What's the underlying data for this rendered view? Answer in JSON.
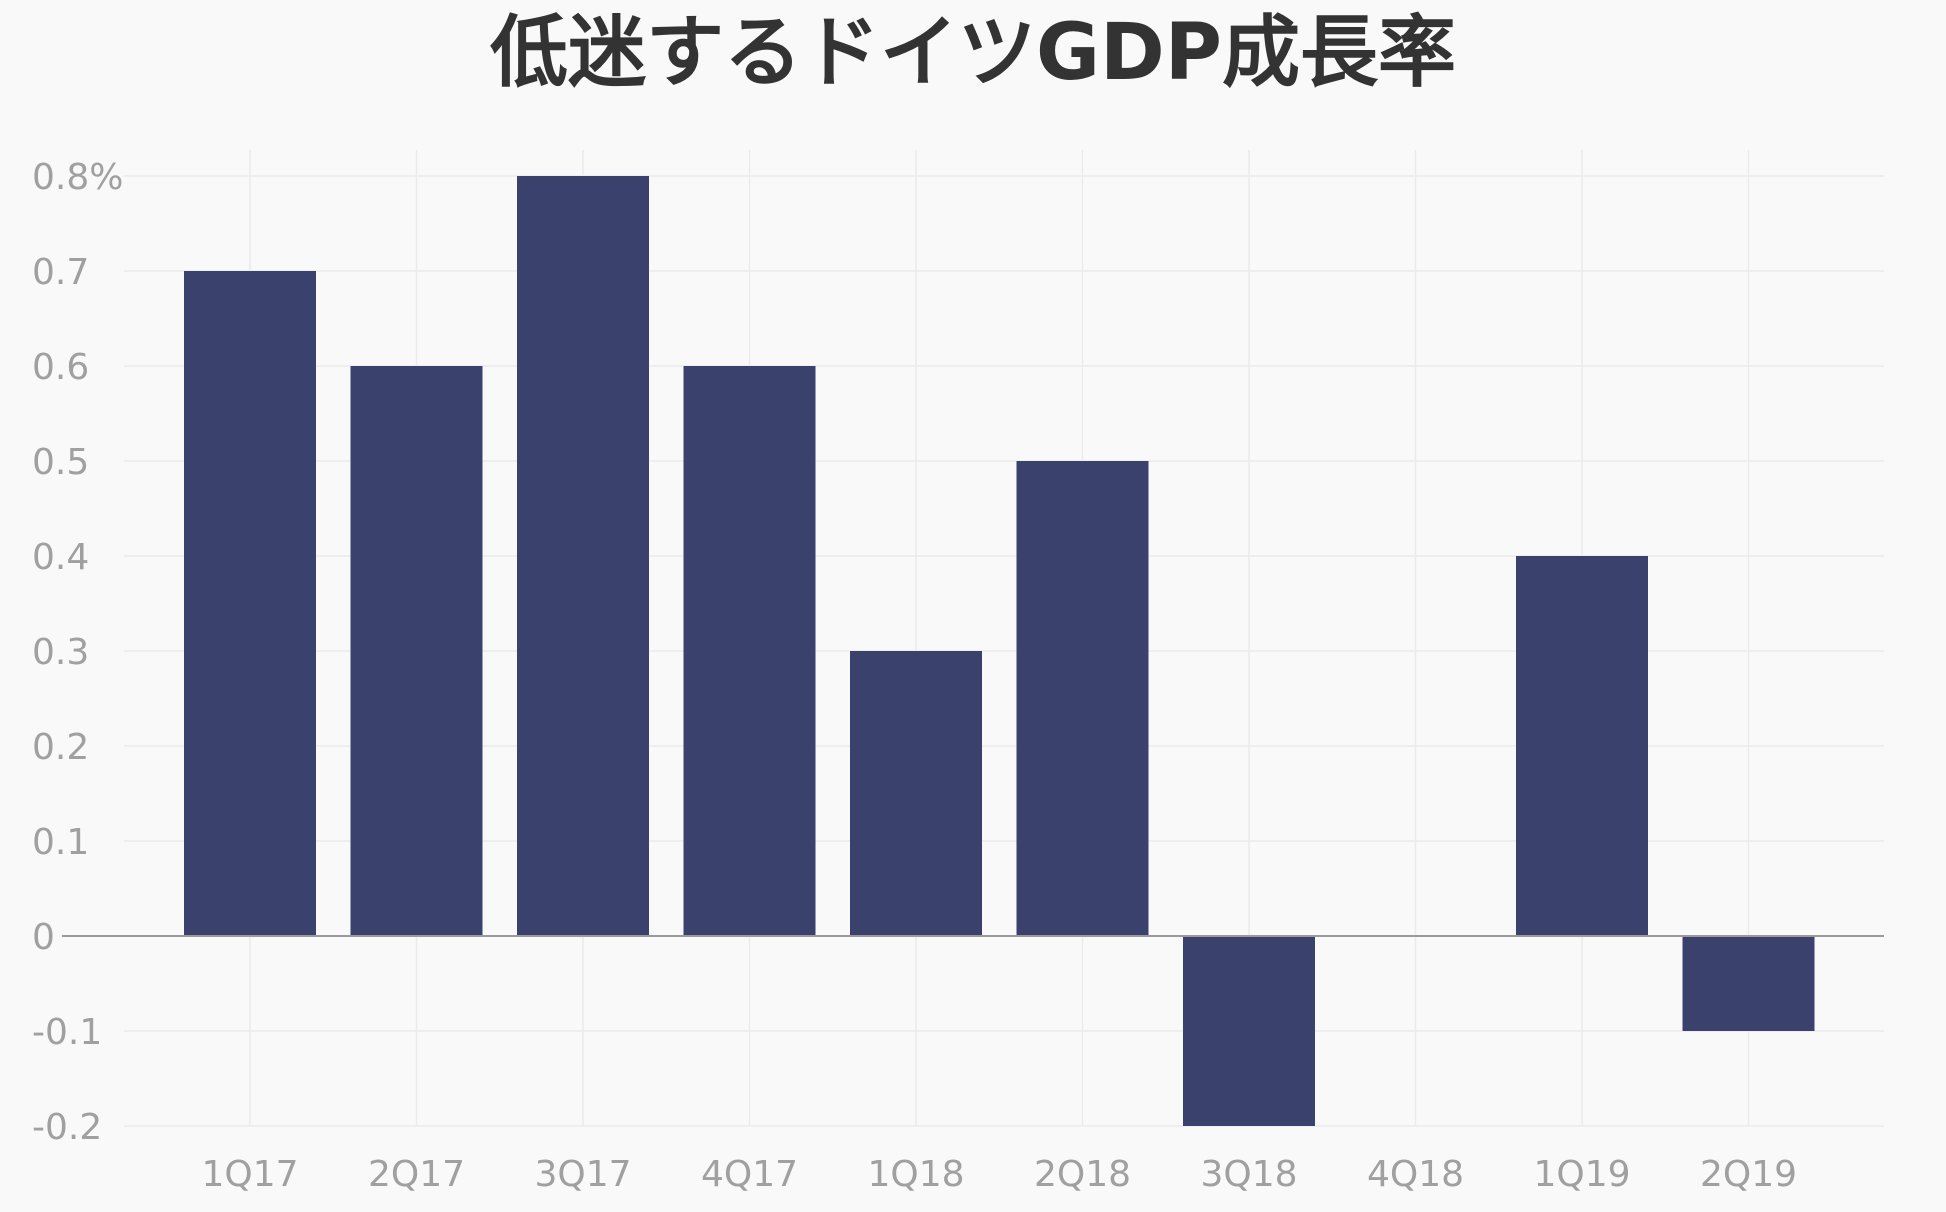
{
  "chart_data": {
    "type": "bar",
    "title": "低迷するドイツGDP成長率",
    "xlabel": "",
    "ylabel": "",
    "categories": [
      "1Q17",
      "2Q17",
      "3Q17",
      "4Q17",
      "1Q18",
      "2Q18",
      "3Q18",
      "4Q18",
      "1Q19",
      "2Q19"
    ],
    "values": [
      0.7,
      0.6,
      0.8,
      0.6,
      0.3,
      0.5,
      -0.2,
      0.0,
      0.4,
      -0.1
    ],
    "ylim": [
      -0.2,
      0.8
    ],
    "yticks": [
      0.8,
      0.7,
      0.6,
      0.5,
      0.4,
      0.3,
      0.2,
      0.1,
      0,
      -0.1,
      -0.2
    ],
    "ytick_labels": [
      "0.8%",
      "0.7",
      "0.6",
      "0.5",
      "0.4",
      "0.3",
      "0.2",
      "0.1",
      "0",
      "-0.1",
      "-0.2"
    ],
    "grid": true,
    "legend": "none",
    "colors": {
      "bar": "#3b416d",
      "grid": "#ebebeb",
      "zero_line": "#9a9a9a",
      "tick_text": "#a0a0a0",
      "title": "#333333",
      "background": "#f9f9f9"
    }
  }
}
